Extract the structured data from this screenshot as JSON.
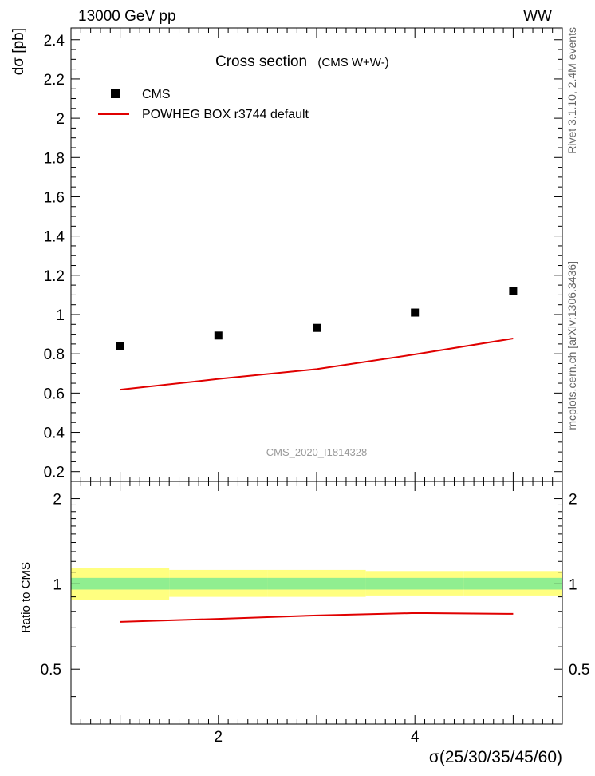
{
  "header": {
    "left": "13000 GeV pp",
    "right": "WW"
  },
  "side_labels": {
    "rivet": "Rivet 3.1.10,  2.4M events",
    "mcplots": "mcplots.cern.ch [arXiv:1306.3436]"
  },
  "chart_data": [
    {
      "type": "scatter",
      "title": "Cross section",
      "subtitle": "(CMS W+W-)",
      "ylabel": "dσ [pb]",
      "xlim": [
        0.5,
        5.5
      ],
      "ylim": [
        0.15,
        2.46
      ],
      "yticks": [
        0.2,
        0.4,
        0.6,
        0.8,
        1,
        1.2,
        1.4,
        1.6,
        1.8,
        2,
        2.2,
        2.4
      ],
      "watermark": "CMS_2020_I1814328",
      "legend_position": "top-left",
      "series": [
        {
          "name": "CMS",
          "kind": "points",
          "color": "#000000",
          "x": [
            1,
            2,
            3,
            4,
            5
          ],
          "y": [
            0.84,
            0.893,
            0.932,
            1.01,
            1.12
          ]
        },
        {
          "name": "POWHEG BOX r3744 default",
          "kind": "line",
          "color": "#e00000",
          "x": [
            1,
            2,
            3,
            4,
            5
          ],
          "y": [
            0.617,
            0.672,
            0.722,
            0.797,
            0.878
          ]
        }
      ]
    },
    {
      "type": "line",
      "ylabel": "Ratio to CMS",
      "xlabel": "σ(25/30/35/45/60)",
      "xlim": [
        0.5,
        5.5
      ],
      "ylim": [
        0.32,
        2.3
      ],
      "yticks": [
        0.5,
        1,
        2
      ],
      "xticks": [
        2,
        4
      ],
      "bands": [
        {
          "kind": "syst",
          "color": "#ffff80",
          "edges": [
            0.5,
            1.5,
            2.5,
            3.5,
            4.5,
            5.5
          ],
          "lo": [
            0.88,
            0.9,
            0.9,
            0.91,
            0.91
          ],
          "hi": [
            1.14,
            1.12,
            1.12,
            1.11,
            1.11
          ]
        },
        {
          "kind": "stat",
          "color": "#90ee90",
          "edges": [
            0.5,
            1.5,
            2.5,
            3.5,
            4.5,
            5.5
          ],
          "lo": [
            0.955,
            0.955,
            0.955,
            0.955,
            0.955
          ],
          "hi": [
            1.05,
            1.05,
            1.05,
            1.05,
            1.05
          ]
        }
      ],
      "series": [
        {
          "name": "POWHEG BOX r3744 default",
          "kind": "line",
          "color": "#e00000",
          "x": [
            1,
            2,
            3,
            4,
            5
          ],
          "y": [
            0.735,
            0.753,
            0.774,
            0.789,
            0.784
          ]
        }
      ]
    }
  ]
}
